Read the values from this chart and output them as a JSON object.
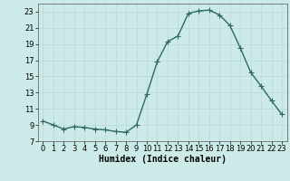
{
  "x": [
    0,
    1,
    2,
    3,
    4,
    5,
    6,
    7,
    8,
    9,
    10,
    11,
    12,
    13,
    14,
    15,
    16,
    17,
    18,
    19,
    20,
    21,
    22,
    23
  ],
  "y": [
    9.5,
    9.0,
    8.5,
    8.8,
    8.7,
    8.5,
    8.4,
    8.2,
    8.1,
    9.0,
    12.8,
    16.8,
    19.3,
    20.0,
    22.8,
    23.1,
    23.2,
    22.6,
    21.3,
    18.5,
    15.5,
    13.8,
    12.0,
    10.3
  ],
  "line_color": "#2e6b5e",
  "marker": "+",
  "markersize": 4,
  "linewidth": 1.0,
  "bg_color": "#cceae8",
  "grid_color": "#b8d8d6",
  "xlabel": "Humidex (Indice chaleur)",
  "xlabel_fontsize": 7,
  "tick_fontsize": 6,
  "ylim": [
    7,
    24
  ],
  "xlim": [
    -0.5,
    23.5
  ],
  "yticks": [
    7,
    9,
    11,
    13,
    15,
    17,
    19,
    21,
    23
  ],
  "xticks": [
    0,
    1,
    2,
    3,
    4,
    5,
    6,
    7,
    8,
    9,
    10,
    11,
    12,
    13,
    14,
    15,
    16,
    17,
    18,
    19,
    20,
    21,
    22,
    23
  ]
}
